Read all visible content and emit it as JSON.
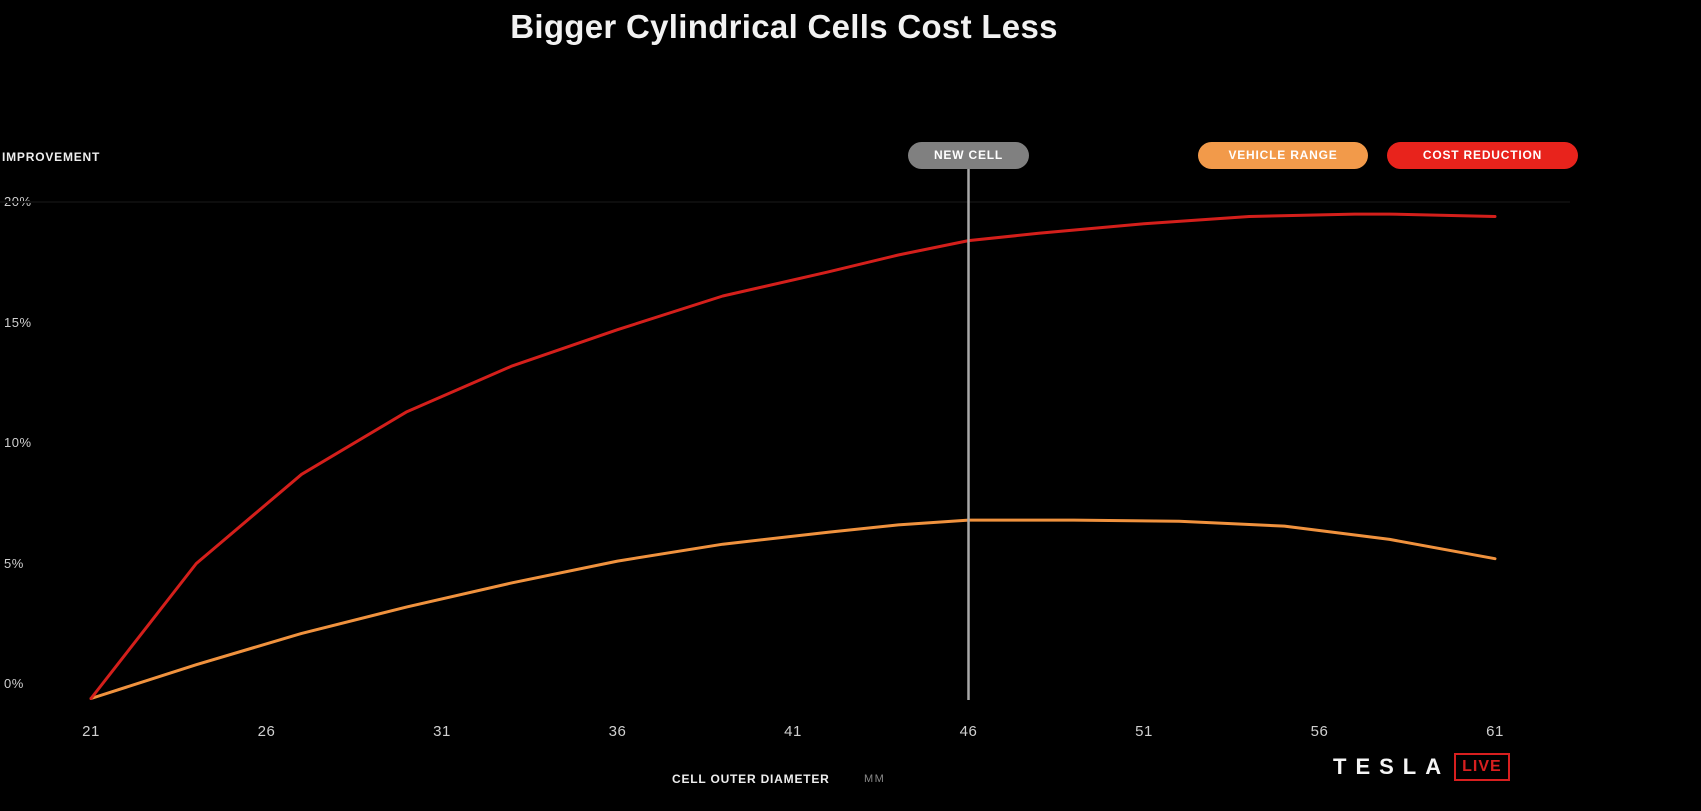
{
  "chart_data": {
    "type": "line",
    "title": "Bigger Cylindrical Cells Cost Less",
    "ylabel": "IMPROVEMENT",
    "xlabel": "CELL OUTER DIAMETER",
    "xunit": "MM",
    "ylim": [
      0,
      20
    ],
    "xlim": [
      21,
      61
    ],
    "yticks": [
      "0%",
      "5%",
      "10%",
      "15%",
      "20%"
    ],
    "ytick_values": [
      0,
      5,
      10,
      15,
      20
    ],
    "xticks": [
      "21",
      "26",
      "31",
      "36",
      "41",
      "46",
      "51",
      "56",
      "61"
    ],
    "xtick_values": [
      21,
      26,
      31,
      36,
      41,
      46,
      51,
      56,
      61
    ],
    "grid": false,
    "legend_position": "top-right",
    "marker": {
      "label": "NEW CELL",
      "x": 46
    },
    "series": [
      {
        "name": "VEHICLE RANGE",
        "color": "#f0923e",
        "x": [
          21,
          24,
          27,
          30,
          33,
          36,
          39,
          42,
          44,
          46,
          49,
          52,
          55,
          58,
          61
        ],
        "y": [
          -0.6,
          0.8,
          2.1,
          3.2,
          4.2,
          5.1,
          5.8,
          6.3,
          6.6,
          6.8,
          6.8,
          6.75,
          6.55,
          6.0,
          5.2
        ]
      },
      {
        "name": "COST REDUCTION",
        "color": "#d41f1b",
        "x": [
          21,
          24,
          27,
          30,
          33,
          36,
          39,
          42,
          44,
          46,
          48,
          51,
          54,
          57,
          58,
          61
        ],
        "y": [
          -0.6,
          5.0,
          8.7,
          11.3,
          13.2,
          14.7,
          16.1,
          17.1,
          17.8,
          18.4,
          18.7,
          19.1,
          19.4,
          19.5,
          19.5,
          19.4
        ]
      }
    ]
  },
  "branding": {
    "logo_word": "TESLA",
    "logo_badge": "LIVE"
  }
}
